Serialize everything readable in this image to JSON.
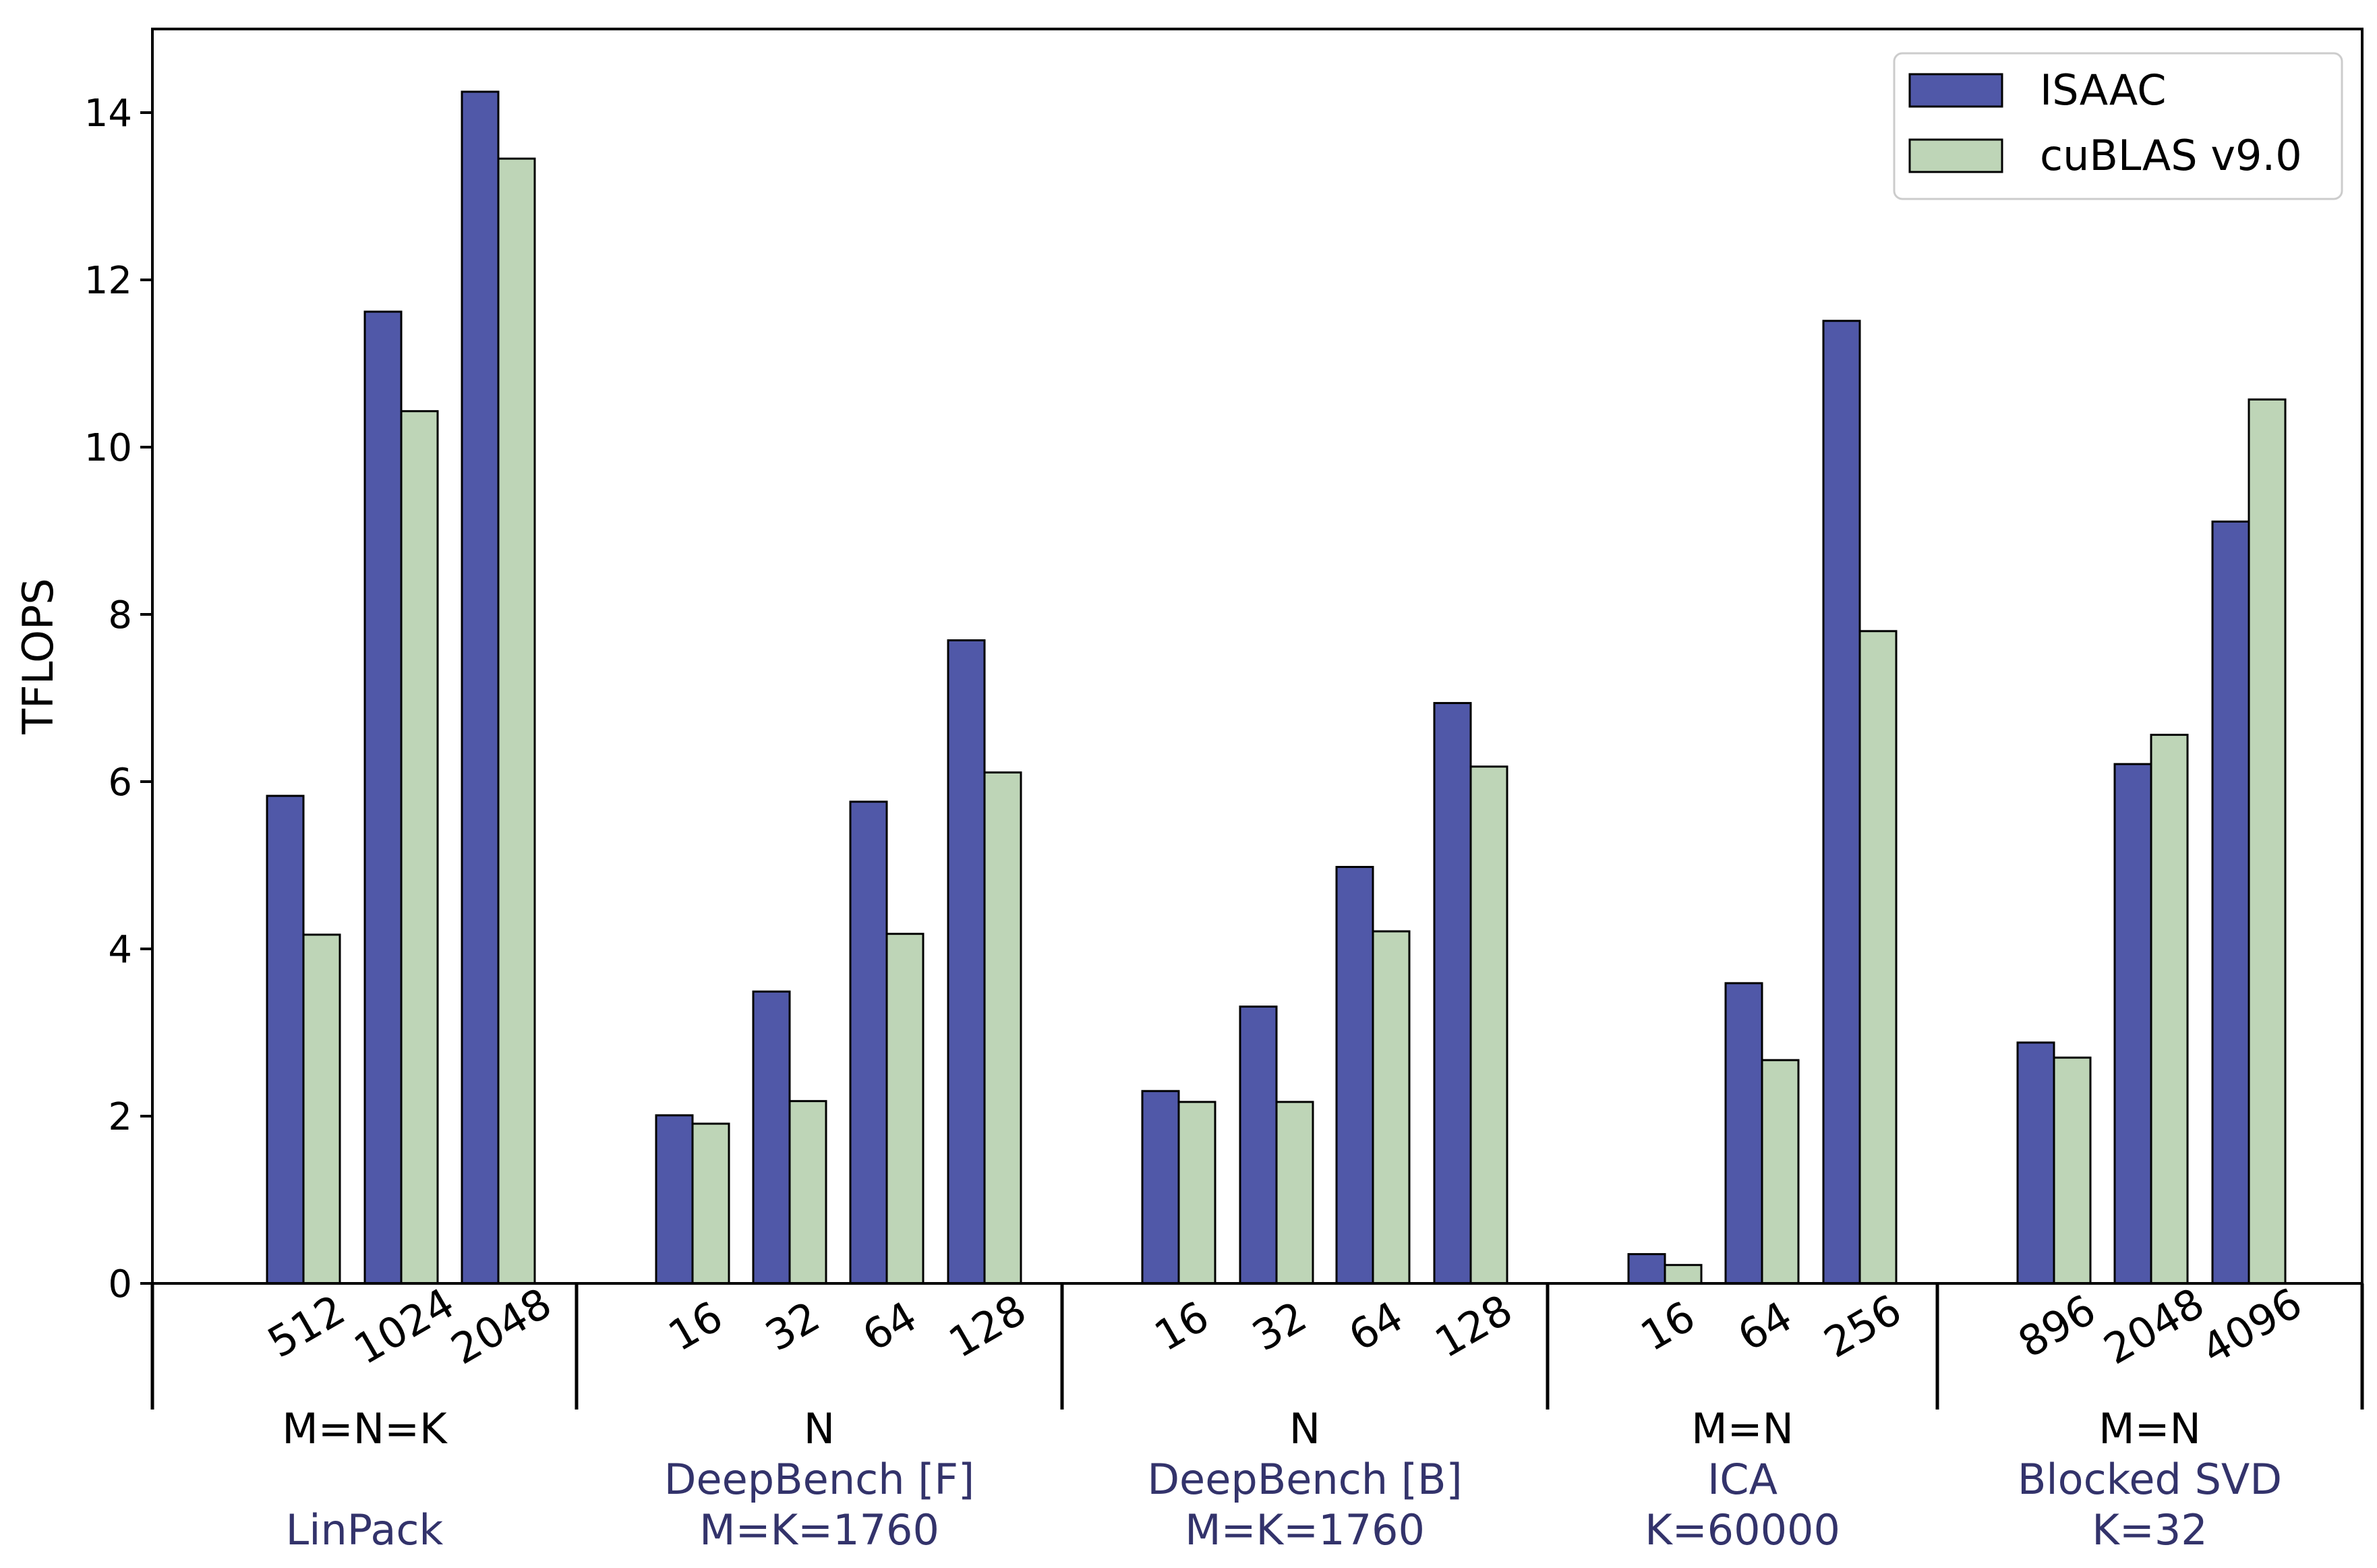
{
  "chart_data": {
    "type": "bar",
    "title": "",
    "xlabel": "",
    "ylabel": "TFLOPS",
    "ylim": [
      0,
      15
    ],
    "yticks": [
      0,
      2,
      4,
      6,
      8,
      10,
      12,
      14
    ],
    "legend_position": "top-right",
    "grid": false,
    "colors": {
      "ISAAC": "#5058a8",
      "cuBLAS v9.0": "#bed5b7",
      "group_name": "#33336b"
    },
    "series": [
      {
        "name": "ISAAC"
      },
      {
        "name": "cuBLAS v9.0"
      }
    ],
    "groups": [
      {
        "param": "M=N=K",
        "name": [
          "LinPack"
        ],
        "categories": [
          "512",
          "1024",
          "2048"
        ],
        "values": {
          "ISAAC": [
            5.83,
            11.62,
            14.25
          ],
          "cuBLAS v9.0": [
            4.17,
            10.43,
            13.45
          ]
        }
      },
      {
        "param": "N",
        "name": [
          "DeepBench [F]",
          "M=K=1760"
        ],
        "categories": [
          "16",
          "32",
          "64",
          "128"
        ],
        "values": {
          "ISAAC": [
            2.01,
            3.49,
            5.76,
            7.69
          ],
          "cuBLAS v9.0": [
            1.91,
            2.18,
            4.18,
            6.11
          ]
        }
      },
      {
        "param": "N",
        "name": [
          "DeepBench [B]",
          "M=K=1760"
        ],
        "categories": [
          "16",
          "32",
          "64",
          "128"
        ],
        "values": {
          "ISAAC": [
            2.3,
            3.31,
            4.98,
            6.94
          ],
          "cuBLAS v9.0": [
            2.17,
            2.17,
            4.21,
            6.18
          ]
        }
      },
      {
        "param": "M=N",
        "name": [
          "ICA",
          "K=60000"
        ],
        "categories": [
          "16",
          "64",
          "256"
        ],
        "values": {
          "ISAAC": [
            0.35,
            3.59,
            11.51
          ],
          "cuBLAS v9.0": [
            0.22,
            2.67,
            7.8
          ]
        }
      },
      {
        "param": "M=N",
        "name": [
          "Blocked SVD",
          "K=32"
        ],
        "categories": [
          "896",
          "2048",
          "4096"
        ],
        "values": {
          "ISAAC": [
            2.88,
            6.21,
            9.11
          ],
          "cuBLAS v9.0": [
            2.7,
            6.56,
            10.57
          ]
        }
      }
    ]
  }
}
